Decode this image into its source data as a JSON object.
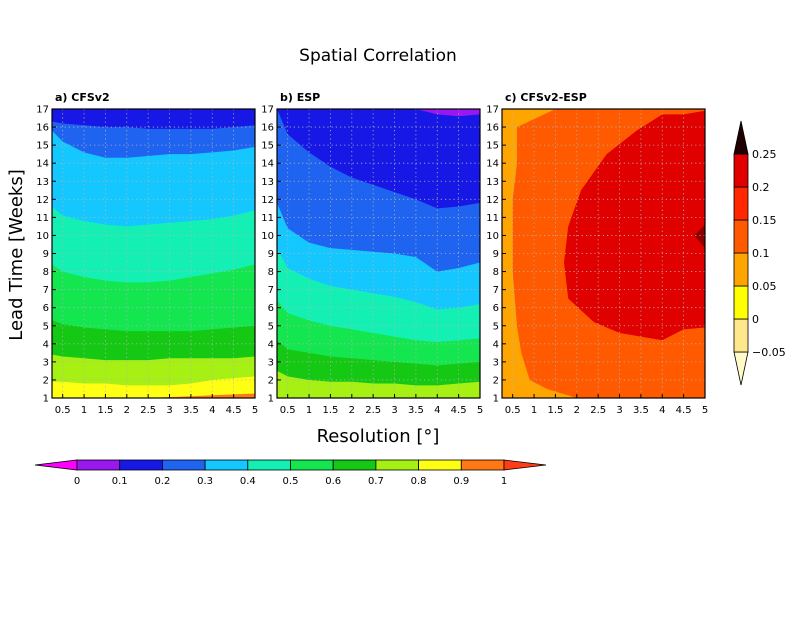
{
  "title": "Spatial Correlation",
  "ylabel": "Lead Time [Weeks]",
  "xlabel": "Resolution [°]",
  "colors": {
    "main_scale": [
      "#ff00ff",
      "#9a18f0",
      "#1818e6",
      "#1e64f0",
      "#14c8ff",
      "#14f0b4",
      "#14e650",
      "#14c814",
      "#a6f014",
      "#ffff14",
      "#ff7814",
      "#ff3c14"
    ],
    "diff_scale": [
      "#fffac8",
      "#ffe88c",
      "#ffff00",
      "#ffa500",
      "#ff5a00",
      "#ff2800",
      "#e10000",
      "#8c0000",
      "#1e0000"
    ]
  },
  "chart_data": [
    {
      "type": "heatmap",
      "panel_label": "a) CFSv2",
      "x": [
        0.25,
        0.5,
        1,
        1.5,
        2,
        2.5,
        3,
        3.5,
        4,
        4.5,
        5
      ],
      "x_ticks": [
        "0.5",
        "1",
        "1.5",
        "2",
        "2.5",
        "3",
        "3.5",
        "4",
        "4.5",
        "5"
      ],
      "y_ticks": [
        "1",
        "2",
        "3",
        "4",
        "5",
        "6",
        "7",
        "8",
        "9",
        "10",
        "11",
        "12",
        "13",
        "14",
        "15",
        "16",
        "17"
      ],
      "xlim": [
        0.25,
        5
      ],
      "ylim": [
        1,
        17
      ],
      "levels": [
        0.2,
        0.3,
        0.4,
        0.5,
        0.6,
        0.7,
        0.8,
        0.9
      ],
      "contour_lines": [
        {
          "level": 0.2,
          "y": [
            16.3,
            16.2,
            16.1,
            16.0,
            16.0,
            15.9,
            15.9,
            15.9,
            15.9,
            16.0,
            16.1
          ]
        },
        {
          "level": 0.3,
          "y": [
            15.8,
            15.2,
            14.6,
            14.3,
            14.3,
            14.4,
            14.5,
            14.5,
            14.6,
            14.7,
            14.9
          ]
        },
        {
          "level": 0.4,
          "y": [
            11.6,
            11.1,
            10.8,
            10.6,
            10.5,
            10.6,
            10.7,
            10.8,
            10.9,
            11.1,
            11.4
          ]
        },
        {
          "level": 0.5,
          "y": [
            8.4,
            8.0,
            7.7,
            7.5,
            7.4,
            7.4,
            7.5,
            7.7,
            7.9,
            8.1,
            8.4
          ]
        },
        {
          "level": 0.6,
          "y": [
            5.3,
            5.1,
            4.9,
            4.8,
            4.7,
            4.7,
            4.7,
            4.7,
            4.8,
            4.9,
            5.0
          ]
        },
        {
          "level": 0.7,
          "y": [
            3.4,
            3.3,
            3.2,
            3.1,
            3.1,
            3.1,
            3.2,
            3.2,
            3.2,
            3.2,
            3.3
          ]
        },
        {
          "level": 0.8,
          "y": [
            1.9,
            1.9,
            1.8,
            1.8,
            1.7,
            1.7,
            1.7,
            1.8,
            2.0,
            2.1,
            2.2
          ]
        },
        {
          "level": 0.9,
          "y": [
            1.0,
            1.0,
            1.0,
            1.0,
            1.0,
            1.0,
            1.05,
            1.1,
            1.15,
            1.2,
            1.25
          ]
        }
      ]
    },
    {
      "type": "heatmap",
      "panel_label": "b) ESP",
      "x": [
        0.25,
        0.5,
        1,
        1.5,
        2,
        2.5,
        3,
        3.5,
        4,
        4.5,
        5
      ],
      "x_ticks": [
        "0.5",
        "1",
        "1.5",
        "2",
        "2.5",
        "3",
        "3.5",
        "4",
        "4.5",
        "5"
      ],
      "y_ticks": [
        "1",
        "2",
        "3",
        "4",
        "5",
        "6",
        "7",
        "8",
        "9",
        "10",
        "11",
        "12",
        "13",
        "14",
        "15",
        "16",
        "17"
      ],
      "xlim": [
        0.25,
        5
      ],
      "ylim": [
        1,
        17
      ],
      "levels": [
        0.1,
        0.2,
        0.3,
        0.4,
        0.5,
        0.6,
        0.7,
        0.8
      ],
      "contour_lines": [
        {
          "level": 0.1,
          "y": [
            18,
            18,
            18,
            18,
            18,
            18,
            18,
            18,
            16.7,
            16.6,
            16.7
          ]
        },
        {
          "level": 0.2,
          "y": [
            17.0,
            15.6,
            14.6,
            13.8,
            13.2,
            12.8,
            12.4,
            12.0,
            11.5,
            11.6,
            11.8
          ]
        },
        {
          "level": 0.3,
          "y": [
            11.8,
            10.4,
            9.6,
            9.3,
            9.2,
            9.1,
            9.0,
            8.8,
            8.0,
            8.2,
            8.5
          ]
        },
        {
          "level": 0.4,
          "y": [
            9.3,
            8.2,
            7.6,
            7.2,
            7.0,
            6.8,
            6.6,
            6.3,
            5.9,
            6.0,
            6.2
          ]
        },
        {
          "level": 0.5,
          "y": [
            6.4,
            5.7,
            5.3,
            5.0,
            4.8,
            4.6,
            4.4,
            4.2,
            4.1,
            4.2,
            4.3
          ]
        },
        {
          "level": 0.6,
          "y": [
            4.2,
            3.7,
            3.5,
            3.3,
            3.2,
            3.1,
            3.0,
            2.9,
            2.8,
            2.9,
            3.0
          ]
        },
        {
          "level": 0.7,
          "y": [
            2.5,
            2.2,
            2.0,
            1.9,
            1.9,
            1.8,
            1.8,
            1.7,
            1.7,
            1.8,
            1.9
          ]
        }
      ]
    },
    {
      "type": "heatmap",
      "panel_label": "c) CFSv2-ESP",
      "x": [
        0.25,
        0.5,
        1,
        1.5,
        2,
        2.5,
        3,
        3.5,
        4,
        4.5,
        5
      ],
      "x_ticks": [
        "0.5",
        "1",
        "1.5",
        "2",
        "2.5",
        "3",
        "3.5",
        "4",
        "4.5",
        "5"
      ],
      "y_ticks": [
        "1",
        "2",
        "3",
        "4",
        "5",
        "6",
        "7",
        "8",
        "9",
        "10",
        "11",
        "12",
        "13",
        "14",
        "15",
        "16",
        "17"
      ],
      "xlim": [
        0.25,
        5
      ],
      "ylim": [
        1,
        17
      ],
      "levels": [
        0.1,
        0.15,
        0.2
      ],
      "region_points": [
        {
          "level": 0.1,
          "points": [
            [
              1.5,
              17
            ],
            [
              0.6,
              16
            ],
            [
              0.6,
              14
            ],
            [
              0.5,
              12
            ],
            [
              0.5,
              10
            ],
            [
              0.5,
              8
            ],
            [
              0.6,
              5
            ],
            [
              0.7,
              3.5
            ],
            [
              0.9,
              2
            ],
            [
              1.3,
              1.5
            ],
            [
              2,
              1
            ],
            [
              5,
              1
            ],
            [
              5,
              17
            ]
          ]
        },
        {
          "level": 0.15,
          "points": [
            [
              4,
              16.7
            ],
            [
              4.5,
              16.7
            ],
            [
              5,
              16.9
            ],
            [
              5,
              4.9
            ],
            [
              4.5,
              4.8
            ],
            [
              4,
              4.2
            ],
            [
              3,
              4.6
            ],
            [
              2.4,
              5.2
            ],
            [
              1.8,
              6.5
            ],
            [
              1.7,
              8.5
            ],
            [
              1.8,
              10.5
            ],
            [
              2.1,
              12.5
            ],
            [
              2.7,
              14.5
            ],
            [
              3.4,
              15.8
            ]
          ]
        },
        {
          "level": 0.2,
          "points": [
            [
              5,
              10.6
            ],
            [
              4.75,
              10
            ],
            [
              5,
              9.3
            ]
          ]
        }
      ]
    },
    {
      "type": "colorbar",
      "orientation": "horizontal",
      "tick_labels": [
        "0",
        "0.1",
        "0.2",
        "0.3",
        "0.4",
        "0.5",
        "0.6",
        "0.7",
        "0.8",
        "0.9",
        "1"
      ]
    },
    {
      "type": "colorbar",
      "orientation": "vertical",
      "tick_labels": [
        "-0.05",
        "0",
        "0.05",
        "0.1",
        "0.15",
        "0.2",
        "0.25"
      ]
    }
  ]
}
